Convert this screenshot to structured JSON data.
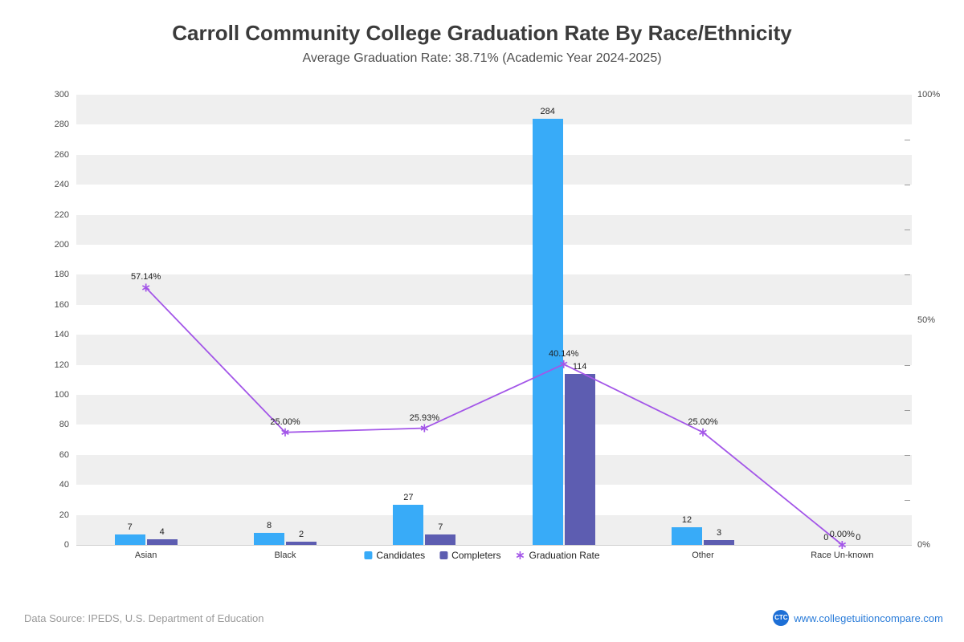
{
  "title": "Carroll Community College Graduation Rate By Race/Ethnicity",
  "subtitle": "Average Graduation Rate: 38.71% (Academic Year 2024-2025)",
  "chart_data": {
    "type": "combo-bar-line",
    "categories": [
      "Asian",
      "Black",
      "",
      "",
      "Other",
      "Race Un-known"
    ],
    "series": [
      {
        "name": "Candidates",
        "type": "bar",
        "color": "#38abf8",
        "values": [
          7,
          8,
          27,
          284,
          12,
          0
        ]
      },
      {
        "name": "Completers",
        "type": "bar",
        "color": "#5d5db1",
        "values": [
          4,
          2,
          7,
          114,
          3,
          0
        ]
      },
      {
        "name": "Graduation Rate",
        "type": "line",
        "color": "#a356e8",
        "values_pct": [
          57.14,
          25.0,
          25.93,
          40.14,
          25.0,
          0.0
        ]
      }
    ],
    "left_axis": {
      "min": 0,
      "max": 300,
      "step": 20
    },
    "right_axis": {
      "min": 0,
      "max": 100,
      "labels": [
        "100%",
        "50%",
        "0%"
      ]
    },
    "legend": [
      "Candidates",
      "Completers",
      "Graduation Rate"
    ],
    "legend_position": "bottom-center",
    "grid": "horizontal-bands"
  },
  "footer": {
    "source": "Data Source: IPEDS, U.S. Department of Education",
    "logo": "CTC",
    "website": "www.collegetuitioncompare.com"
  }
}
